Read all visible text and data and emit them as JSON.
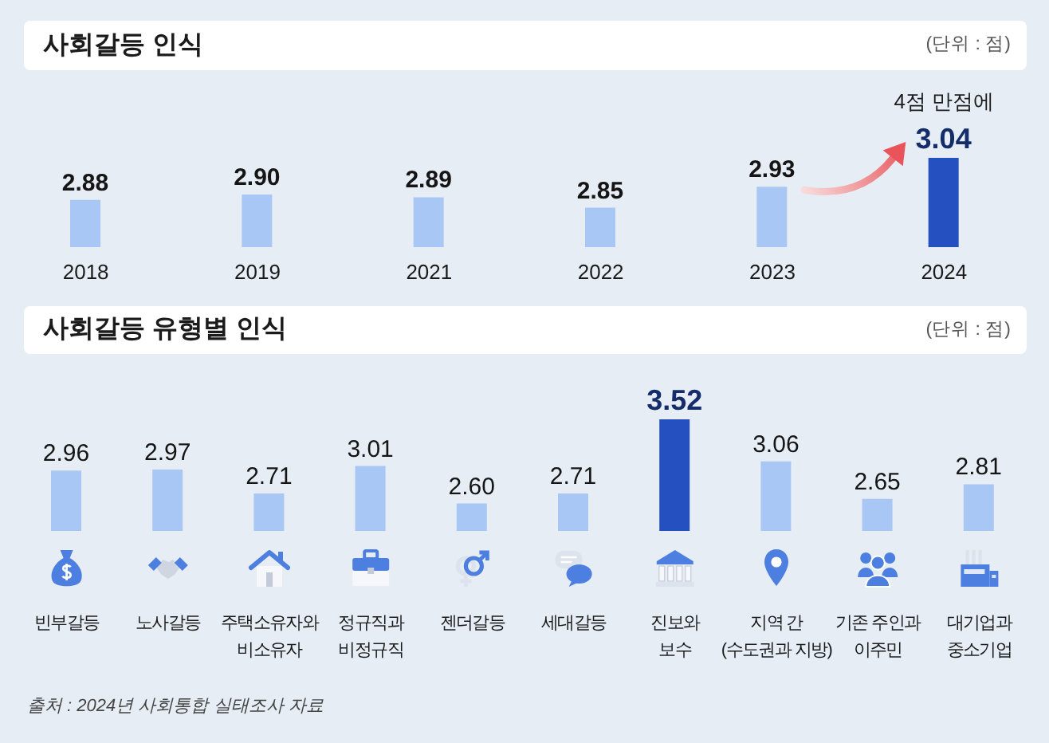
{
  "chart_data": [
    {
      "type": "bar",
      "title": "사회갈등 인식",
      "categories": [
        "2018",
        "2019",
        "2021",
        "2022",
        "2023",
        "2024"
      ],
      "values": [
        2.88,
        2.9,
        2.89,
        2.85,
        2.93,
        3.04
      ],
      "value_labels": [
        "2.88",
        "2.90",
        "2.89",
        "2.85",
        "2.93",
        "3.04"
      ],
      "colors": [
        "#a9c7f5",
        "#a9c7f5",
        "#a9c7f5",
        "#a9c7f5",
        "#a9c7f5",
        "#2550c0"
      ],
      "ylim": [
        2.7,
        3.04
      ],
      "tick_labels": "x",
      "annotations": [
        "(단위 : 점)",
        {
          "text": "4점 만점에",
          "x": "2024",
          "y": 3.04
        }
      ]
    },
    {
      "type": "bar",
      "title": "사회갈등 유형별 인식",
      "categories": [
        "빈부갈등",
        "노사갈등",
        "주택소유자와\n비소유자",
        "정규직과\n비정규직",
        "젠더갈등",
        "세대갈등",
        "진보와\n보수",
        "지역 간\n(수도권과 지방)",
        "기존 주인과\n이주민",
        "대기업과\n중소기업"
      ],
      "values": [
        2.96,
        2.97,
        2.71,
        3.01,
        2.6,
        2.71,
        3.52,
        3.06,
        2.65,
        2.81
      ],
      "value_labels": [
        "2.96",
        "2.97",
        "2.71",
        "3.01",
        "2.60",
        "2.71",
        "3.52",
        "3.06",
        "2.65",
        "2.81"
      ],
      "colors": [
        "#a9c7f5",
        "#a9c7f5",
        "#a9c7f5",
        "#a9c7f5",
        "#a9c7f5",
        "#a9c7f5",
        "#2550c0",
        "#a9c7f5",
        "#a9c7f5",
        "#a9c7f5"
      ],
      "ylim": [
        2.3,
        3.52
      ],
      "tick_labels": "x",
      "annotations": [
        "(단위 : 점)",
        "출처 : 2024년 사회통합 실태조사 자료"
      ]
    }
  ]
}
